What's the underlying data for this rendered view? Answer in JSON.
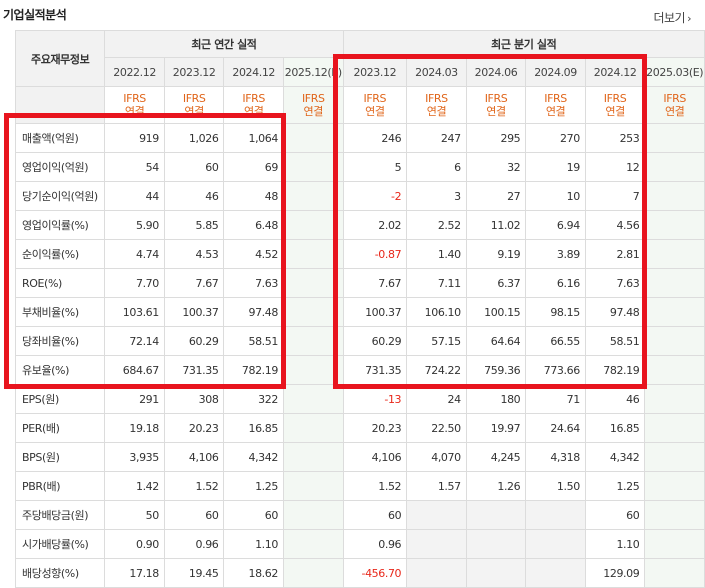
{
  "header": {
    "title": "기업실적분석",
    "more_label": "더보기",
    "more_icon": "chevron-right-icon"
  },
  "table": {
    "corner_label": "주요재무정보",
    "annual_group_label": "최근 연간 실적",
    "quarter_group_label": "최근 분기 실적",
    "annual_periods": [
      "2022.12",
      "2023.12",
      "2024.12",
      "2025.12(E)"
    ],
    "quarter_periods": [
      "2023.12",
      "2024.03",
      "2024.06",
      "2024.09",
      "2024.12",
      "2025.03(E)"
    ],
    "ifrs_top": "IFRS",
    "ifrs_bottom": "연결",
    "rows": [
      {
        "label": "매출액(억원)",
        "annual": [
          "919",
          "1,026",
          "1,064",
          ""
        ],
        "quarter": [
          "246",
          "247",
          "295",
          "270",
          "253",
          ""
        ]
      },
      {
        "label": "영업이익(억원)",
        "annual": [
          "54",
          "60",
          "69",
          ""
        ],
        "quarter": [
          "5",
          "6",
          "32",
          "19",
          "12",
          ""
        ]
      },
      {
        "label": "당기순이익(억원)",
        "annual": [
          "44",
          "46",
          "48",
          ""
        ],
        "quarter": [
          "-2",
          "3",
          "27",
          "10",
          "7",
          ""
        ]
      },
      {
        "label": "영업이익률(%)",
        "annual": [
          "5.90",
          "5.85",
          "6.48",
          ""
        ],
        "quarter": [
          "2.02",
          "2.52",
          "11.02",
          "6.94",
          "4.56",
          ""
        ]
      },
      {
        "label": "순이익률(%)",
        "annual": [
          "4.74",
          "4.53",
          "4.52",
          ""
        ],
        "quarter": [
          "-0.87",
          "1.40",
          "9.19",
          "3.89",
          "2.81",
          ""
        ]
      },
      {
        "label": "ROE(%)",
        "annual": [
          "7.70",
          "7.67",
          "7.63",
          ""
        ],
        "quarter": [
          "7.67",
          "7.11",
          "6.37",
          "6.16",
          "7.63",
          ""
        ]
      },
      {
        "label": "부채비율(%)",
        "annual": [
          "103.61",
          "100.37",
          "97.48",
          ""
        ],
        "quarter": [
          "100.37",
          "106.10",
          "100.15",
          "98.15",
          "97.48",
          ""
        ]
      },
      {
        "label": "당좌비율(%)",
        "annual": [
          "72.14",
          "60.29",
          "58.51",
          ""
        ],
        "quarter": [
          "60.29",
          "57.15",
          "64.64",
          "66.55",
          "58.51",
          ""
        ]
      },
      {
        "label": "유보율(%)",
        "annual": [
          "684.67",
          "731.35",
          "782.19",
          ""
        ],
        "quarter": [
          "731.35",
          "724.22",
          "759.36",
          "773.66",
          "782.19",
          ""
        ]
      },
      {
        "label": "EPS(원)",
        "annual": [
          "291",
          "308",
          "322",
          ""
        ],
        "quarter": [
          "-13",
          "24",
          "180",
          "71",
          "46",
          ""
        ]
      },
      {
        "label": "PER(배)",
        "annual": [
          "19.18",
          "20.23",
          "16.85",
          ""
        ],
        "quarter": [
          "20.23",
          "22.50",
          "19.97",
          "24.64",
          "16.85",
          ""
        ]
      },
      {
        "label": "BPS(원)",
        "annual": [
          "3,935",
          "4,106",
          "4,342",
          ""
        ],
        "quarter": [
          "4,106",
          "4,070",
          "4,245",
          "4,318",
          "4,342",
          ""
        ]
      },
      {
        "label": "PBR(배)",
        "annual": [
          "1.42",
          "1.52",
          "1.25",
          ""
        ],
        "quarter": [
          "1.52",
          "1.57",
          "1.26",
          "1.50",
          "1.25",
          ""
        ]
      },
      {
        "label": "주당배당금(원)",
        "annual": [
          "50",
          "60",
          "60",
          ""
        ],
        "quarter": [
          "60",
          "",
          "",
          "",
          "60",
          ""
        ]
      },
      {
        "label": "시가배당률(%)",
        "annual": [
          "0.90",
          "0.96",
          "1.10",
          ""
        ],
        "quarter": [
          "0.96",
          "",
          "",
          "",
          "1.10",
          ""
        ]
      },
      {
        "label": "배당성향(%)",
        "annual": [
          "17.18",
          "19.45",
          "18.62",
          ""
        ],
        "quarter": [
          "-456.70",
          "",
          "",
          "",
          "129.09",
          ""
        ]
      }
    ],
    "section_starts": [
      3,
      6,
      9,
      13
    ]
  },
  "colors": {
    "highlight": "#e8141e",
    "ifrs_text": "#e0651a",
    "negative": "#e8271a",
    "estimate_bg": "#f3f8f3"
  }
}
